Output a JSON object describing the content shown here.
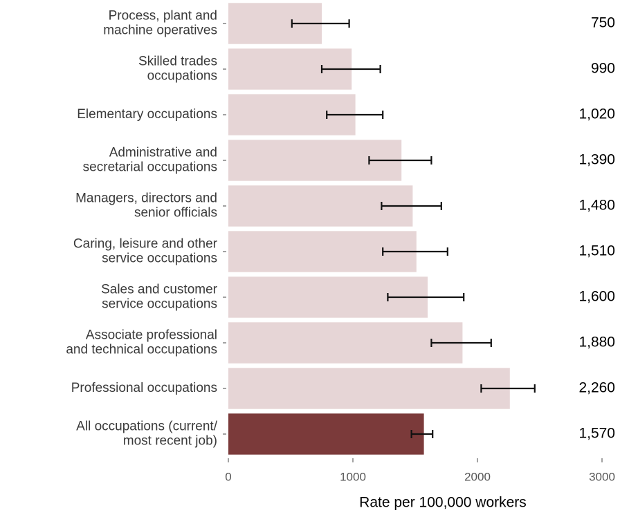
{
  "chart_data": {
    "type": "bar",
    "orientation": "horizontal",
    "x_label": "Rate per 100,000 workers",
    "categories": [
      "Process, plant and\nmachine operatives",
      "Skilled trades\noccupations",
      "Elementary occupations",
      "Administrative and\nsecretarial occupations",
      "Managers, directors and\nsenior officials",
      "Caring, leisure and other\nservice occupations",
      "Sales and customer\nservice occupations",
      "Associate professional\nand technical occupations",
      "Professional occupations",
      "All occupations (current/\nmost recent job)"
    ],
    "values": [
      750,
      990,
      1020,
      1390,
      1480,
      1510,
      1600,
      1880,
      2260,
      1570
    ],
    "value_labels": [
      "750",
      "990",
      "1,020",
      "1,390",
      "1,480",
      "1,510",
      "1,600",
      "1,880",
      "2,260",
      "1,570"
    ],
    "ci_low": [
      510,
      750,
      790,
      1130,
      1230,
      1240,
      1280,
      1630,
      2030,
      1470
    ],
    "ci_high": [
      970,
      1220,
      1240,
      1630,
      1710,
      1760,
      1890,
      2110,
      2460,
      1640
    ],
    "colors": [
      "#e6d5d6",
      "#e6d5d6",
      "#e6d5d6",
      "#e6d5d6",
      "#e6d5d6",
      "#e6d5d6",
      "#e6d5d6",
      "#e6d5d6",
      "#e6d5d6",
      "#7b3a3a"
    ],
    "xlim": [
      0,
      3000
    ],
    "xticks": [
      0,
      1000,
      2000,
      3000
    ],
    "grid": false
  }
}
